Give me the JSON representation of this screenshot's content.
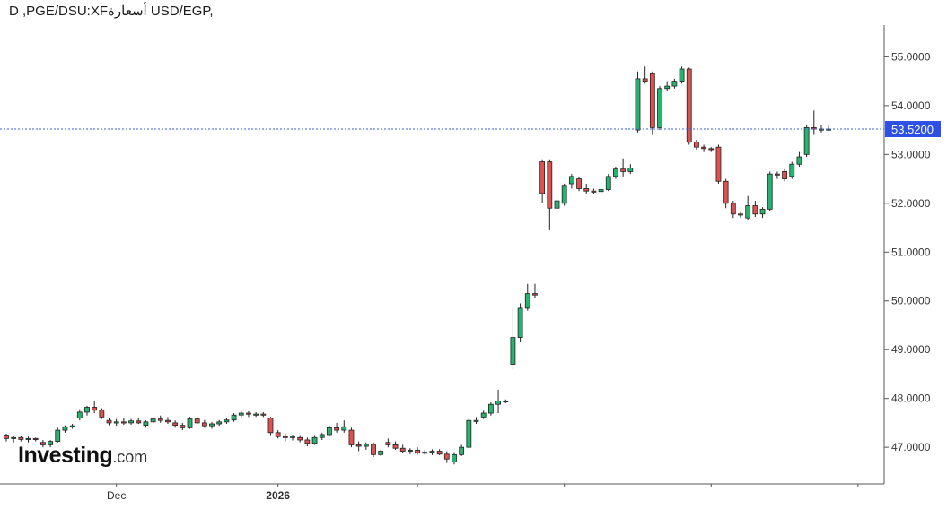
{
  "header": {
    "title": "D ,PGE/DSU:XFأسعار‌ة USD/EGP,"
  },
  "logo": {
    "brand": "Investing",
    "suffix": ".com"
  },
  "colors": {
    "up": "#26b36f",
    "down": "#e0504f",
    "current_line": "#3a5ee8",
    "current_badge": "#2d50e6"
  },
  "chart_data": {
    "type": "candlestick",
    "current_price_label": "53.5200",
    "current_value": 53.52,
    "ylim": [
      46.25,
      55.65
    ],
    "y_ticks": [
      47.0,
      48.0,
      49.0,
      50.0,
      51.0,
      52.0,
      53.0,
      54.0,
      55.0
    ],
    "y_tick_labels": [
      "47.0000",
      "48.0000",
      "49.0000",
      "50.0000",
      "51.0000",
      "52.0000",
      "53.0000",
      "54.0000",
      "55.0000"
    ],
    "x_tick_labels": [
      {
        "label": "Dec",
        "index": 15,
        "bold": false
      },
      {
        "label": "2026",
        "index": 37,
        "bold": true
      },
      {
        "label": "",
        "index": 56,
        "bold": false
      },
      {
        "label": "",
        "index": 76,
        "bold": false
      },
      {
        "label": "",
        "index": 96,
        "bold": false
      },
      {
        "label": "",
        "index": 116,
        "bold": false
      }
    ],
    "candles": [
      [
        47.25,
        47.28,
        47.12,
        47.18
      ],
      [
        47.18,
        47.24,
        47.1,
        47.2
      ],
      [
        47.2,
        47.23,
        47.12,
        47.16
      ],
      [
        47.16,
        47.22,
        47.1,
        47.18
      ],
      [
        47.18,
        47.2,
        47.12,
        47.17
      ],
      [
        47.1,
        47.15,
        47.0,
        47.05
      ],
      [
        47.05,
        47.15,
        47.0,
        47.12
      ],
      [
        47.12,
        47.4,
        47.1,
        47.35
      ],
      [
        47.35,
        47.45,
        47.3,
        47.42
      ],
      [
        47.42,
        47.48,
        47.38,
        47.44
      ],
      [
        47.6,
        47.78,
        47.55,
        47.72
      ],
      [
        47.72,
        47.85,
        47.65,
        47.82
      ],
      [
        47.82,
        47.95,
        47.7,
        47.76
      ],
      [
        47.76,
        47.8,
        47.58,
        47.62
      ],
      [
        47.55,
        47.6,
        47.45,
        47.5
      ],
      [
        47.5,
        47.58,
        47.44,
        47.52
      ],
      [
        47.52,
        47.6,
        47.46,
        47.5
      ],
      [
        47.5,
        47.58,
        47.46,
        47.54
      ],
      [
        47.54,
        47.6,
        47.48,
        47.5
      ],
      [
        47.45,
        47.55,
        47.4,
        47.52
      ],
      [
        47.52,
        47.62,
        47.48,
        47.58
      ],
      [
        47.58,
        47.65,
        47.5,
        47.55
      ],
      [
        47.55,
        47.62,
        47.48,
        47.52
      ],
      [
        47.5,
        47.55,
        47.4,
        47.45
      ],
      [
        47.45,
        47.5,
        47.35,
        47.4
      ],
      [
        47.4,
        47.62,
        47.38,
        47.58
      ],
      [
        47.58,
        47.62,
        47.48,
        47.5
      ],
      [
        47.5,
        47.56,
        47.4,
        47.44
      ],
      [
        47.44,
        47.52,
        47.38,
        47.48
      ],
      [
        47.48,
        47.56,
        47.44,
        47.52
      ],
      [
        47.52,
        47.6,
        47.48,
        47.56
      ],
      [
        47.56,
        47.7,
        47.52,
        47.66
      ],
      [
        47.66,
        47.75,
        47.6,
        47.7
      ],
      [
        47.7,
        47.74,
        47.62,
        47.68
      ],
      [
        47.68,
        47.72,
        47.62,
        47.68
      ],
      [
        47.68,
        47.72,
        47.62,
        47.66
      ],
      [
        47.6,
        47.62,
        47.25,
        47.3
      ],
      [
        47.3,
        47.35,
        47.18,
        47.22
      ],
      [
        47.22,
        47.28,
        47.12,
        47.2
      ],
      [
        47.2,
        47.26,
        47.14,
        47.22
      ],
      [
        47.2,
        47.25,
        47.1,
        47.15
      ],
      [
        47.15,
        47.2,
        47.02,
        47.08
      ],
      [
        47.08,
        47.25,
        47.05,
        47.2
      ],
      [
        47.2,
        47.3,
        47.15,
        47.26
      ],
      [
        47.26,
        47.45,
        47.22,
        47.4
      ],
      [
        47.4,
        47.5,
        47.3,
        47.35
      ],
      [
        47.35,
        47.55,
        47.3,
        47.42
      ],
      [
        47.35,
        47.4,
        47.0,
        47.05
      ],
      [
        47.05,
        47.12,
        46.92,
        47.02
      ],
      [
        47.02,
        47.1,
        46.95,
        47.06
      ],
      [
        47.06,
        47.1,
        46.8,
        46.85
      ],
      [
        46.85,
        46.95,
        46.82,
        46.92
      ],
      [
        47.1,
        47.18,
        47.0,
        47.05
      ],
      [
        47.05,
        47.12,
        46.95,
        46.98
      ],
      [
        46.98,
        47.05,
        46.88,
        46.92
      ],
      [
        46.92,
        46.98,
        46.86,
        46.94
      ],
      [
        46.94,
        47.0,
        46.85,
        46.88
      ],
      [
        46.88,
        46.95,
        46.84,
        46.9
      ],
      [
        46.9,
        46.96,
        46.84,
        46.92
      ],
      [
        46.92,
        46.96,
        46.84,
        46.86
      ],
      [
        46.86,
        46.92,
        46.68,
        46.76
      ],
      [
        46.7,
        46.9,
        46.65,
        46.85
      ],
      [
        46.85,
        47.05,
        46.82,
        47.0
      ],
      [
        47.0,
        47.6,
        46.98,
        47.55
      ],
      [
        47.55,
        47.62,
        47.48,
        47.55
      ],
      [
        47.62,
        47.75,
        47.58,
        47.7
      ],
      [
        47.7,
        47.92,
        47.65,
        47.88
      ],
      [
        47.88,
        48.18,
        47.7,
        47.95
      ],
      [
        47.95,
        47.98,
        47.9,
        47.95
      ],
      [
        48.7,
        49.85,
        48.6,
        49.25
      ],
      [
        49.25,
        49.95,
        49.15,
        49.85
      ],
      [
        49.85,
        50.35,
        49.8,
        50.15
      ],
      [
        50.15,
        50.35,
        50.05,
        50.12
      ],
      [
        52.85,
        52.9,
        52.0,
        52.2
      ],
      [
        52.85,
        52.9,
        51.45,
        51.9
      ],
      [
        51.9,
        52.15,
        51.7,
        52.05
      ],
      [
        52.0,
        52.4,
        51.95,
        52.35
      ],
      [
        52.4,
        52.6,
        52.3,
        52.55
      ],
      [
        52.5,
        52.55,
        52.25,
        52.3
      ],
      [
        52.3,
        52.4,
        52.2,
        52.25
      ],
      [
        52.25,
        52.3,
        52.2,
        52.24
      ],
      [
        52.24,
        52.3,
        52.2,
        52.28
      ],
      [
        52.28,
        52.6,
        52.25,
        52.55
      ],
      [
        52.55,
        52.75,
        52.5,
        52.7
      ],
      [
        52.7,
        52.92,
        52.55,
        52.65
      ],
      [
        52.65,
        52.8,
        52.6,
        52.72
      ],
      [
        53.5,
        54.7,
        53.45,
        54.55
      ],
      [
        54.55,
        54.8,
        54.45,
        54.5
      ],
      [
        54.65,
        54.7,
        53.4,
        53.55
      ],
      [
        53.55,
        54.4,
        53.5,
        54.35
      ],
      [
        54.35,
        54.5,
        54.3,
        54.4
      ],
      [
        54.4,
        54.55,
        54.35,
        54.5
      ],
      [
        54.5,
        54.8,
        54.45,
        54.75
      ],
      [
        54.75,
        54.78,
        53.2,
        53.25
      ],
      [
        53.25,
        53.3,
        53.1,
        53.15
      ],
      [
        53.15,
        53.2,
        53.05,
        53.12
      ],
      [
        53.12,
        53.15,
        53.05,
        53.1
      ],
      [
        53.15,
        53.2,
        52.4,
        52.45
      ],
      [
        52.45,
        52.5,
        51.9,
        52.0
      ],
      [
        52.0,
        52.05,
        51.7,
        51.78
      ],
      [
        51.78,
        51.82,
        51.7,
        51.76
      ],
      [
        51.7,
        52.15,
        51.65,
        51.95
      ],
      [
        51.95,
        52.05,
        51.72,
        51.78
      ],
      [
        51.78,
        51.92,
        51.7,
        51.88
      ],
      [
        51.88,
        52.65,
        51.85,
        52.6
      ],
      [
        52.6,
        52.65,
        52.5,
        52.58
      ],
      [
        52.65,
        52.7,
        52.45,
        52.5
      ],
      [
        52.55,
        52.85,
        52.5,
        52.8
      ],
      [
        52.8,
        53.05,
        52.75,
        52.95
      ],
      [
        53.0,
        53.6,
        52.95,
        53.55
      ],
      [
        53.55,
        53.9,
        53.4,
        53.52
      ],
      [
        53.52,
        53.6,
        53.45,
        53.52
      ],
      [
        53.52,
        53.6,
        53.48,
        53.52
      ]
    ]
  }
}
